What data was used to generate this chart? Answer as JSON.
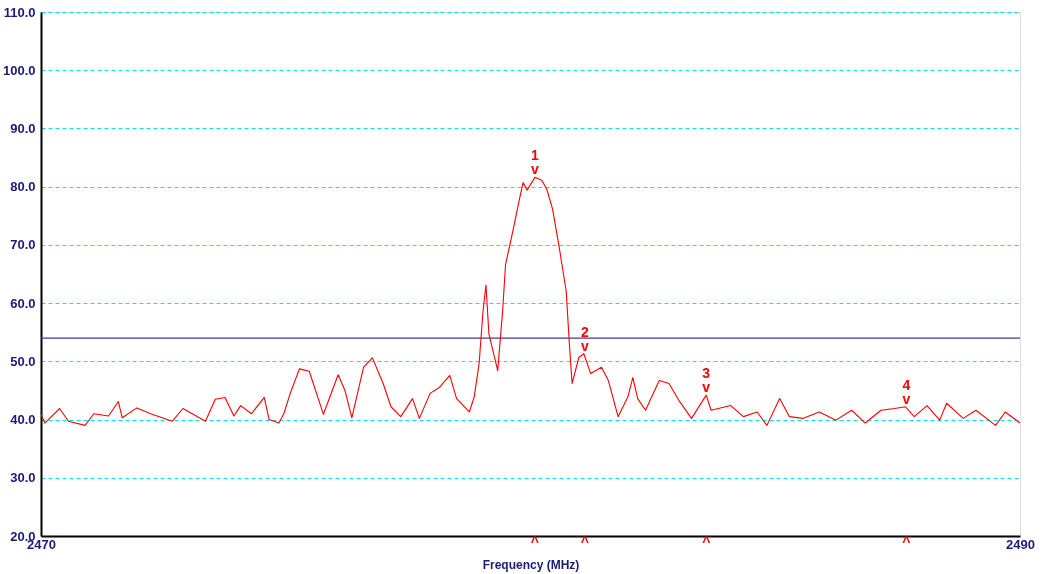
{
  "chart_data": {
    "type": "line",
    "xlabel": "Frequency (MHz)",
    "xlim": [
      2470,
      2490
    ],
    "xticks": [
      2470,
      2490
    ],
    "ylim": [
      20,
      110
    ],
    "yticks": [
      {
        "value": 20,
        "label": "20.0"
      },
      {
        "value": 30,
        "label": "30.0"
      },
      {
        "value": 40,
        "label": "40.0"
      },
      {
        "value": 50,
        "label": "50.0"
      },
      {
        "value": 60,
        "label": "60.0"
      },
      {
        "value": 70,
        "label": "70.0"
      },
      {
        "value": 80,
        "label": "80.0"
      },
      {
        "value": 90,
        "label": "90.0"
      },
      {
        "value": 100,
        "label": "100.0"
      },
      {
        "value": 110,
        "label": "110.0"
      }
    ],
    "grid": "y",
    "marker": "none",
    "line_style": "solid",
    "ref_lines": [
      {
        "axis": "y",
        "value": 54,
        "color": "#3c3c9c"
      }
    ],
    "annotations": [
      {
        "text": "1",
        "x": 2480.09,
        "y": 81.6
      },
      {
        "text": "v",
        "x": 2480.09,
        "y": 81.6
      },
      "^",
      {
        "text": "2",
        "x": 2481.11,
        "y": 51.3
      },
      {
        "text": "v",
        "x": 2481.11,
        "y": 51.3
      },
      "^",
      {
        "text": "3",
        "x": 2483.59,
        "y": 44.2
      },
      {
        "text": "v",
        "x": 2483.59,
        "y": 44.2
      },
      "^",
      {
        "text": "4",
        "x": 2487.68,
        "y": 42.2
      },
      {
        "text": "v",
        "x": 2487.68,
        "y": 42.2
      },
      "^"
    ],
    "series": [
      {
        "color": "#ff0000",
        "x": [
          2470.0,
          2470.08,
          2470.38,
          2470.56,
          2470.9,
          2471.08,
          2471.38,
          2471.58,
          2471.66,
          2471.96,
          2472.24,
          2472.68,
          2472.9,
          2473.36,
          2473.56,
          2473.76,
          2473.94,
          2474.08,
          2474.3,
          2474.56,
          2474.66,
          2474.86,
          2474.96,
          2475.1,
          2475.28,
          2475.48,
          2475.77,
          2476.07,
          2476.21,
          2476.35,
          2476.59,
          2476.77,
          2476.99,
          2477.15,
          2477.35,
          2477.59,
          2477.73,
          2477.95,
          2478.15,
          2478.35,
          2478.49,
          2478.75,
          2478.85,
          2478.95,
          2479.03,
          2479.09,
          2479.15,
          2479.33,
          2479.43,
          2479.49,
          2479.65,
          2479.79,
          2479.85,
          2479.93,
          2480.09,
          2480.23,
          2480.33,
          2480.45,
          2480.59,
          2480.73,
          2480.79,
          2480.85,
          2480.99,
          2481.09,
          2481.23,
          2481.45,
          2481.59,
          2481.79,
          2481.99,
          2482.09,
          2482.19,
          2482.35,
          2482.63,
          2482.83,
          2483.03,
          2483.29,
          2483.59,
          2483.69,
          2484.09,
          2484.35,
          2484.63,
          2484.83,
          2485.09,
          2485.29,
          2485.56,
          2485.9,
          2486.24,
          2486.56,
          2486.84,
          2487.16,
          2487.44,
          2487.66,
          2487.84,
          2488.1,
          2488.36,
          2488.5,
          2488.84,
          2489.1,
          2489.5,
          2489.7,
          2490.0
        ],
        "values": [
          40.9,
          39.4,
          41.9,
          39.7,
          39.0,
          41.0,
          40.6,
          43.1,
          40.3,
          42.0,
          41.0,
          39.7,
          41.9,
          39.7,
          43.5,
          43.8,
          40.6,
          42.4,
          41.0,
          43.8,
          40.0,
          39.4,
          41.0,
          44.7,
          48.7,
          48.3,
          40.9,
          47.7,
          45.0,
          40.3,
          49.0,
          50.6,
          46.2,
          42.2,
          40.5,
          43.6,
          40.2,
          44.5,
          45.6,
          47.6,
          43.6,
          41.3,
          43.9,
          49.6,
          58.6,
          63.1,
          54.7,
          48.4,
          58.6,
          66.6,
          72.8,
          78.5,
          80.7,
          79.4,
          81.6,
          81.1,
          79.6,
          76.2,
          69.4,
          62.0,
          53.5,
          46.2,
          50.7,
          51.3,
          47.9,
          49.0,
          46.7,
          40.5,
          43.9,
          47.2,
          43.6,
          41.6,
          46.7,
          46.2,
          43.3,
          40.2,
          44.2,
          41.6,
          42.4,
          40.5,
          41.3,
          39.0,
          43.6,
          40.5,
          40.2,
          41.3,
          39.9,
          41.6,
          39.4,
          41.6,
          41.9,
          42.2,
          40.5,
          42.4,
          39.9,
          42.8,
          40.2,
          41.6,
          39.0,
          41.3,
          39.4
        ]
      }
    ]
  }
}
